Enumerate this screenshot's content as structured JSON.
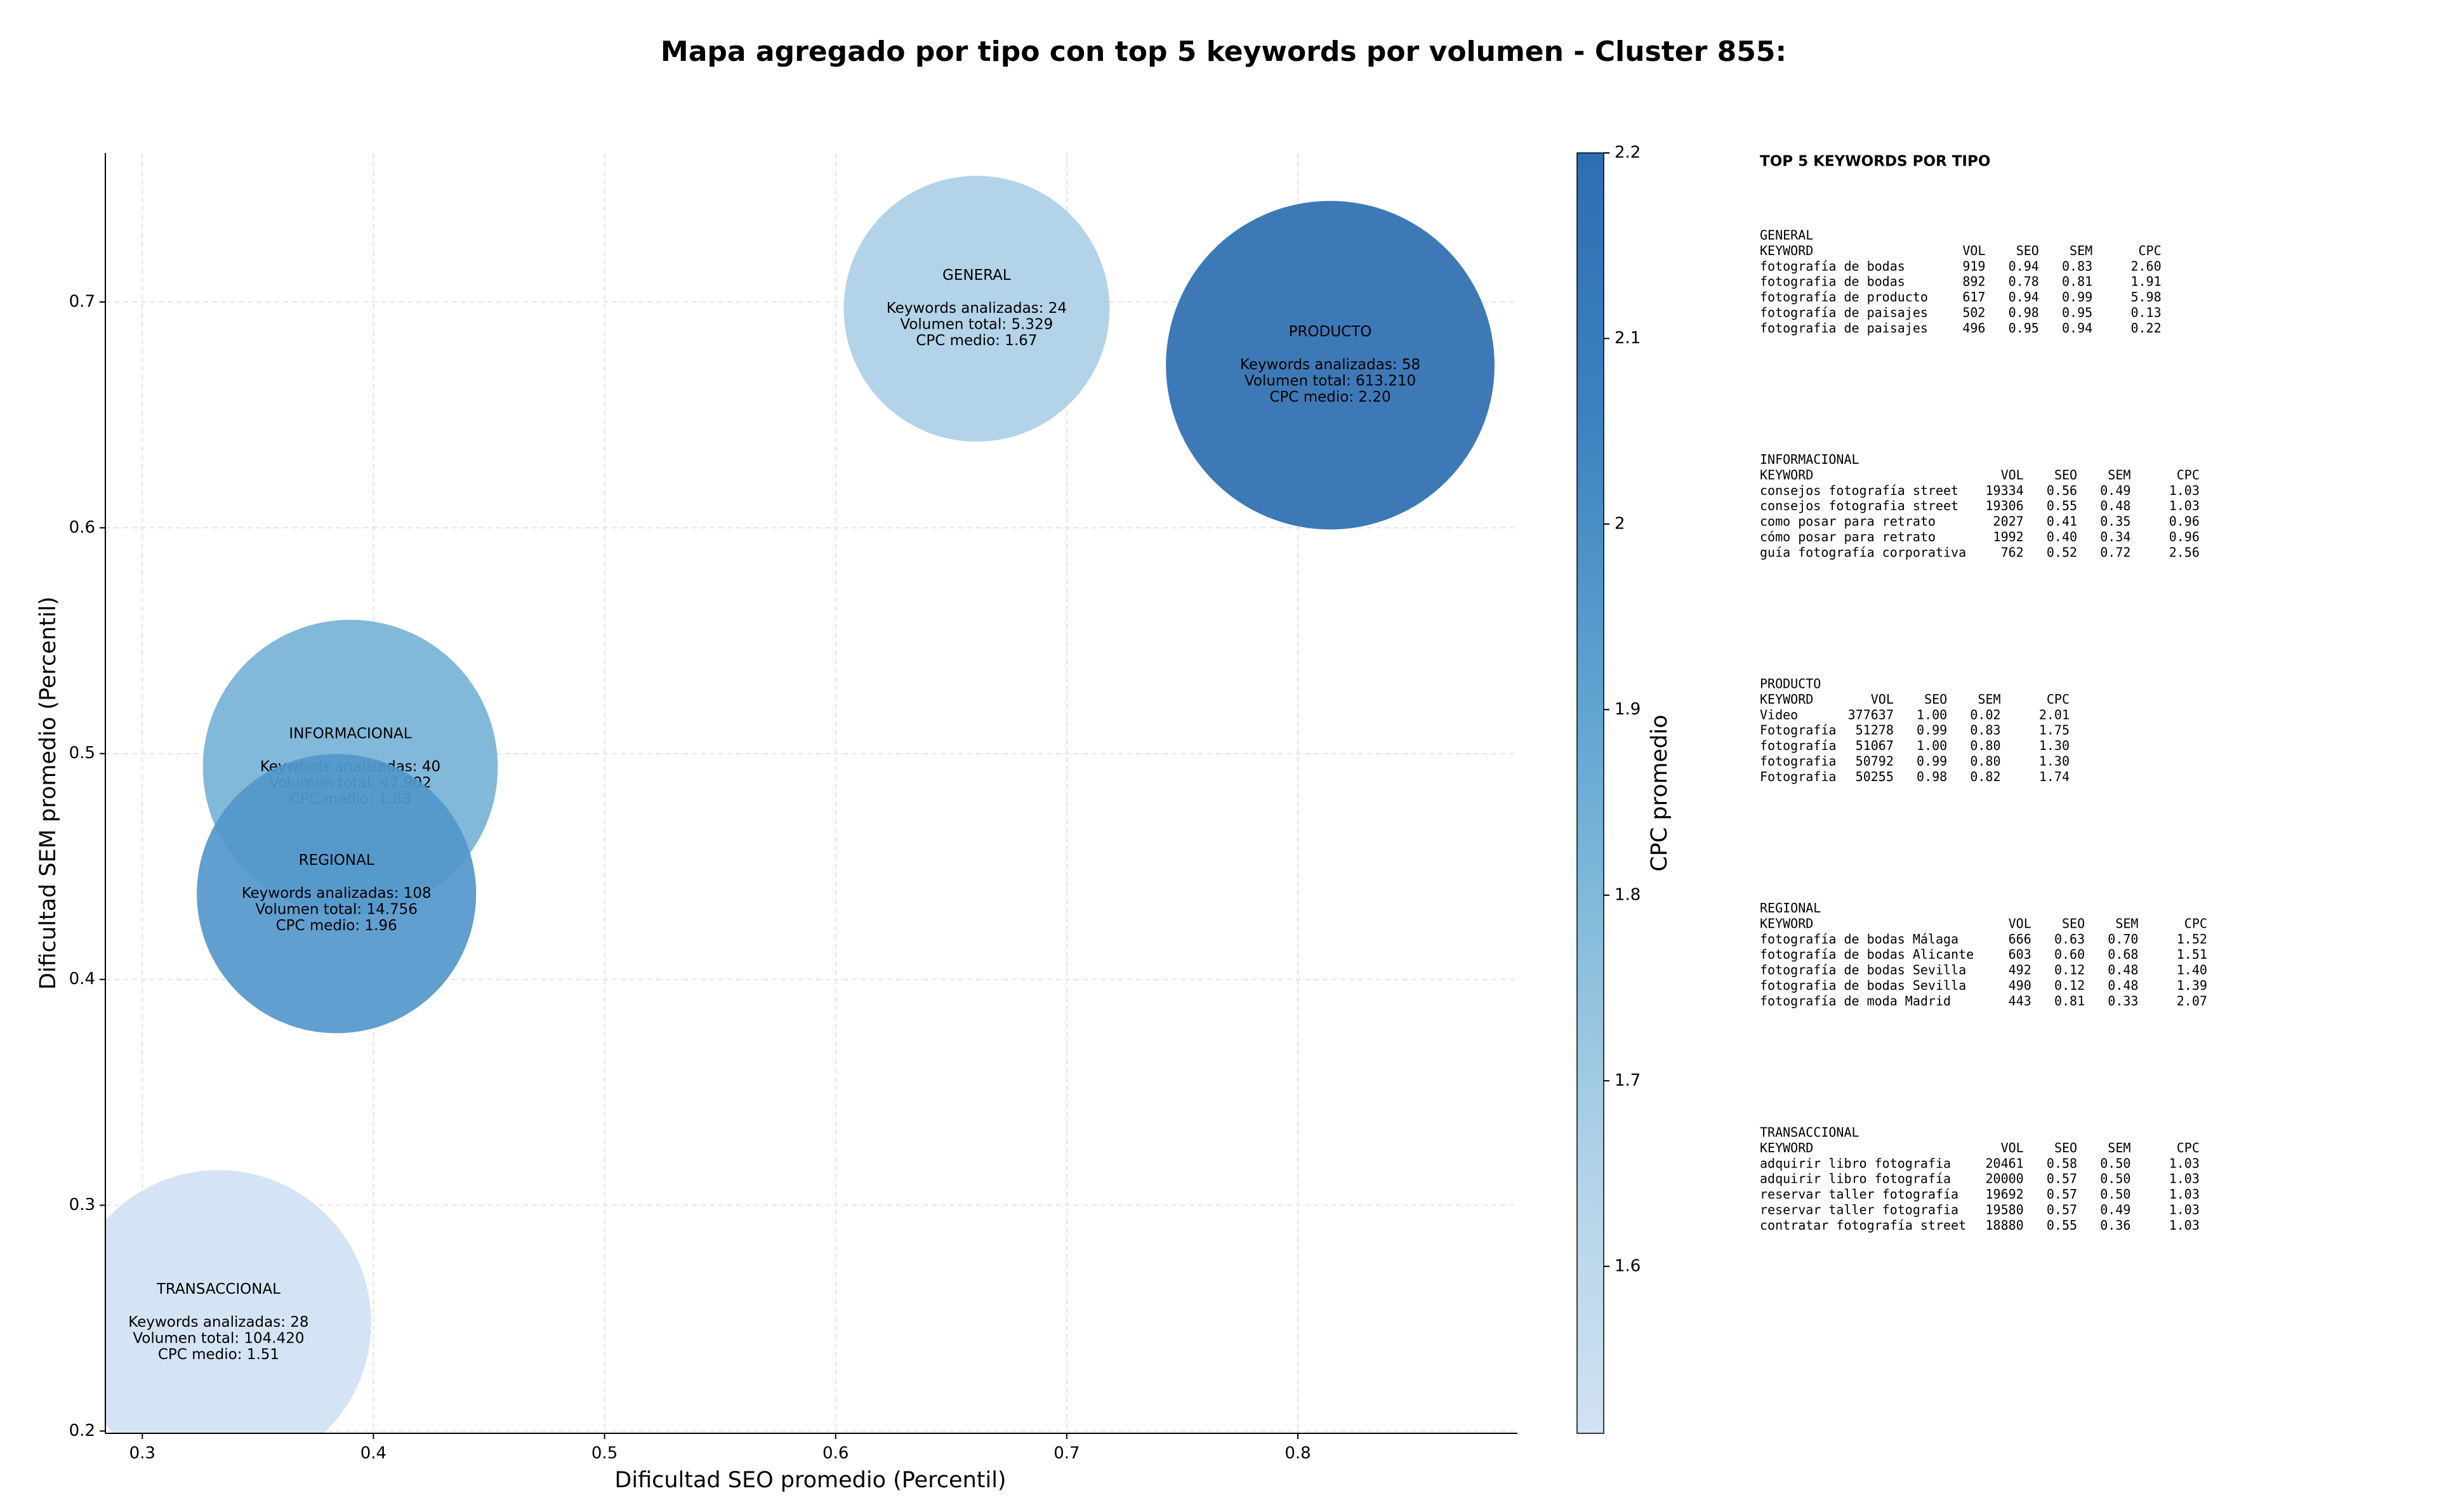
{
  "chart_data": {
    "type": "bubble",
    "title": "Mapa agregado por tipo con top 5 keywords por volumen - Cluster 855:",
    "x_label": "Dificultad SEO promedio (Percentil)",
    "y_label": "Dificultad SEM promedio (Percentil)",
    "colorbar_label": "CPC promedio",
    "xlim": [
      0.284,
      0.895
    ],
    "ylim": [
      0.199,
      0.766
    ],
    "xticks": [
      0.3,
      0.4,
      0.5,
      0.6,
      0.7,
      0.8
    ],
    "yticks": [
      0.2,
      0.3,
      0.4,
      0.5,
      0.6,
      0.7
    ],
    "clim": [
      1.51,
      2.2
    ],
    "cticks": [
      1.6,
      1.7,
      1.8,
      1.9,
      2.0,
      2.1,
      2.2
    ],
    "colormap": [
      "#d1e2f3",
      "#b3d3e8",
      "#84bcdb",
      "#5a9fcf",
      "#3a82bf",
      "#2d6eb1"
    ],
    "grid": true,
    "points": [
      {
        "name": "GENERAL",
        "x": 0.661,
        "y": 0.697,
        "volume": 5329,
        "cpc": 1.67,
        "keywords": 24,
        "labels": [
          "Keywords analizadas: 24",
          "Volumen total: 5.329",
          "CPC medio: 1.67"
        ]
      },
      {
        "name": "INFORMACIONAL",
        "x": 0.39,
        "y": 0.494,
        "volume": 47902,
        "cpc": 1.83,
        "keywords": 40,
        "labels": [
          "Keywords analizadas: 40",
          "Volumen total: 47.902",
          "CPC medio: 1.83"
        ]
      },
      {
        "name": "PRODUCTO",
        "x": 0.814,
        "y": 0.672,
        "volume": 613210,
        "cpc": 2.2,
        "keywords": 58,
        "labels": [
          "Keywords analizadas: 58",
          "Volumen total: 613.210",
          "CPC medio: 2.20"
        ]
      },
      {
        "name": "REGIONAL",
        "x": 0.384,
        "y": 0.438,
        "volume": 14756,
        "cpc": 1.96,
        "keywords": 108,
        "labels": [
          "Keywords analizadas: 108",
          "Volumen total: 14.756",
          "CPC medio: 1.96"
        ]
      },
      {
        "name": "TRANSACCIONAL",
        "x": 0.333,
        "y": 0.248,
        "volume": 104420,
        "cpc": 1.51,
        "keywords": 28,
        "labels": [
          "Keywords analizadas: 28",
          "Volumen total: 104.420",
          "CPC medio: 1.51"
        ]
      }
    ]
  },
  "keyword_tables": {
    "title": "TOP 5 KEYWORDS POR TIPO",
    "columns": [
      "KEYWORD",
      "VOL",
      "SEO",
      "SEM",
      "CPC"
    ],
    "sections": [
      {
        "name": "GENERAL",
        "rows": [
          [
            "fotografía de bodas",
            "919",
            "0.94",
            "0.83",
            "2.60"
          ],
          [
            "fotografia de bodas",
            "892",
            "0.78",
            "0.81",
            "1.91"
          ],
          [
            "fotografía de producto",
            "617",
            "0.94",
            "0.99",
            "5.98"
          ],
          [
            "fotografía de paisajes",
            "502",
            "0.98",
            "0.95",
            "0.13"
          ],
          [
            "fotografia de paisajes",
            "496",
            "0.95",
            "0.94",
            "0.22"
          ]
        ]
      },
      {
        "name": "INFORMACIONAL",
        "rows": [
          [
            "consejos fotografía street",
            "19334",
            "0.56",
            "0.49",
            "1.03"
          ],
          [
            "consejos fotografia street",
            "19306",
            "0.55",
            "0.48",
            "1.03"
          ],
          [
            "como posar para retrato",
            "2027",
            "0.41",
            "0.35",
            "0.96"
          ],
          [
            "cómo posar para retrato",
            "1992",
            "0.40",
            "0.34",
            "0.96"
          ],
          [
            "guía fotografía corporativa",
            "762",
            "0.52",
            "0.72",
            "2.56"
          ]
        ]
      },
      {
        "name": "PRODUCTO",
        "rows": [
          [
            "Video",
            "377637",
            "1.00",
            "0.02",
            "2.01"
          ],
          [
            "Fotografía",
            "51278",
            "0.99",
            "0.83",
            "1.75"
          ],
          [
            "fotografía",
            "51067",
            "1.00",
            "0.80",
            "1.30"
          ],
          [
            "fotografia",
            "50792",
            "0.99",
            "0.80",
            "1.30"
          ],
          [
            "Fotografia",
            "50255",
            "0.98",
            "0.82",
            "1.74"
          ]
        ]
      },
      {
        "name": "REGIONAL",
        "rows": [
          [
            "fotografía de bodas Málaga",
            "666",
            "0.63",
            "0.70",
            "1.52"
          ],
          [
            "fotografía de bodas Alicante",
            "603",
            "0.60",
            "0.68",
            "1.51"
          ],
          [
            "fotografía de bodas Sevilla",
            "492",
            "0.12",
            "0.48",
            "1.40"
          ],
          [
            "fotografia de bodas Sevilla",
            "490",
            "0.12",
            "0.48",
            "1.39"
          ],
          [
            "fotografía de moda Madrid",
            "443",
            "0.81",
            "0.33",
            "2.07"
          ]
        ]
      },
      {
        "name": "TRANSACCIONAL",
        "rows": [
          [
            "adquirir libro fotografia",
            "20461",
            "0.58",
            "0.50",
            "1.03"
          ],
          [
            "adquirir libro fotografía",
            "20000",
            "0.57",
            "0.50",
            "1.03"
          ],
          [
            "reservar taller fotografía",
            "19692",
            "0.57",
            "0.50",
            "1.03"
          ],
          [
            "reservar taller fotografia",
            "19580",
            "0.57",
            "0.49",
            "1.03"
          ],
          [
            "contratar fotografía street",
            "18880",
            "0.55",
            "0.36",
            "1.03"
          ]
        ]
      }
    ]
  }
}
